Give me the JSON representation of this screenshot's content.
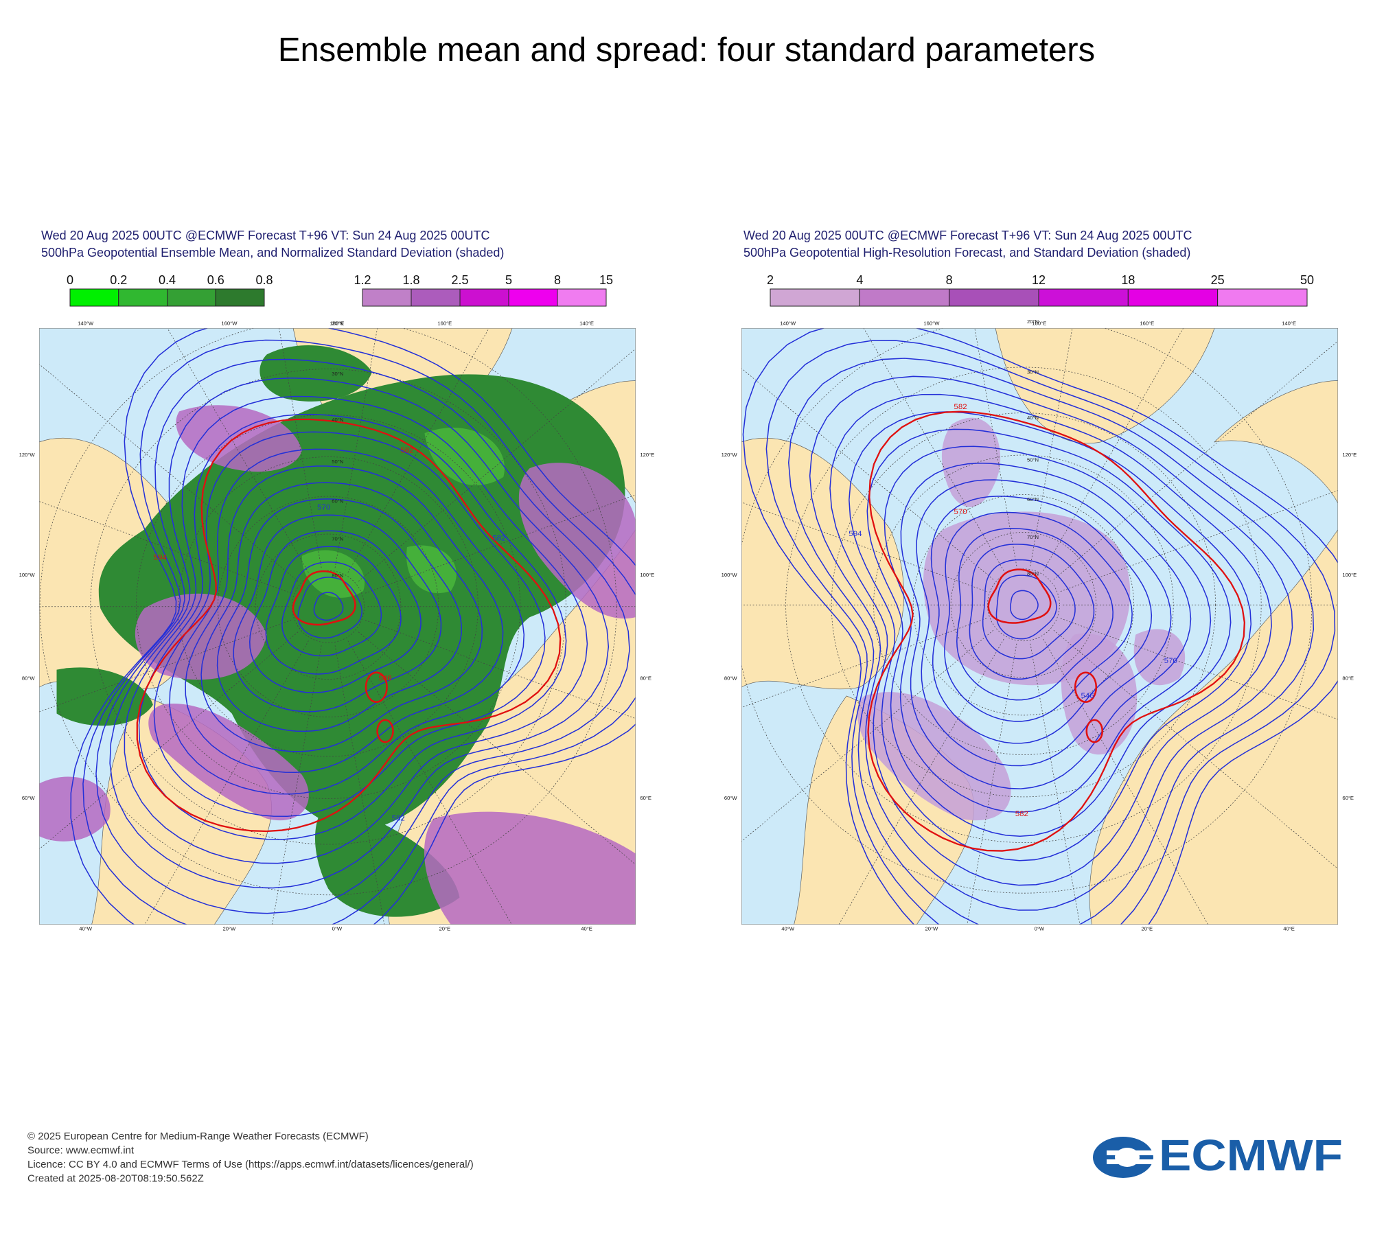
{
  "title": "Ensemble mean and spread: four standard parameters",
  "panels": [
    {
      "header": [
        "Wed 20 Aug 2025 00UTC @ECMWF Forecast T+96 VT: Sun 24 Aug 2025 00UTC",
        "500hPa Geopotential Ensemble Mean, and Normalized Standard Deviation (shaded)"
      ],
      "colorbars": [
        {
          "labels": [
            "0",
            "0.2",
            "0.4",
            "0.6",
            "0.8"
          ],
          "colors": [
            "#00f000",
            "#30b830",
            "#34a034",
            "#2d7a2d"
          ]
        },
        {
          "labels": [
            "1.2",
            "1.8",
            "2.5",
            "5",
            "8",
            "15"
          ],
          "colors": [
            "#c080c8",
            "#ac5cbc",
            "#cc10d0",
            "#ee00ee",
            "#f07cf0"
          ]
        }
      ],
      "lon_top": [
        "140°W",
        "160°W",
        "180°E",
        "160°E",
        "140°E"
      ],
      "lon_left": [
        "120°W",
        "100°W",
        "80°W",
        "60°W"
      ],
      "lon_right": [
        "120°E",
        "100°E",
        "80°E",
        "60°E"
      ],
      "lon_bottom": [
        "40°W",
        "20°W",
        "0°W",
        "20°E",
        "40°E"
      ],
      "lat_labels": [
        "20°N",
        "30°N",
        "40°N",
        "50°N",
        "60°N",
        "70°N",
        "80°N"
      ],
      "contour_labels": [
        "582",
        "570",
        "594",
        "582",
        "546",
        "582"
      ]
    },
    {
      "header": [
        "Wed 20 Aug 2025 00UTC @ECMWF Forecast T+96 VT: Sun 24 Aug 2025 00UTC",
        "500hPa Geopotential High-Resolution Forecast, and Standard Deviation (shaded)"
      ],
      "colorbars": [
        {
          "labels": [
            "2",
            "4",
            "8",
            "12",
            "18",
            "25",
            "50"
          ],
          "colors": [
            "#d0a6d4",
            "#c07ac8",
            "#a850b8",
            "#cc10d8",
            "#e400e4",
            "#f07af0"
          ]
        }
      ],
      "lon_top": [
        "140°W",
        "160°W",
        "180°E",
        "160°E",
        "140°E"
      ],
      "lon_left": [
        "120°W",
        "100°W",
        "80°W",
        "60°W"
      ],
      "lon_right": [
        "120°E",
        "100°E",
        "80°E",
        "60°E"
      ],
      "lon_bottom": [
        "40°W",
        "20°W",
        "0°W",
        "20°E",
        "40°E"
      ],
      "lat_labels": [
        "20°N",
        "30°N",
        "40°N",
        "50°N",
        "60°N",
        "70°N",
        "80°N"
      ],
      "contour_labels": [
        "582",
        "594",
        "570",
        "546",
        "582",
        "570"
      ]
    }
  ],
  "footer": [
    "© 2025 European Centre for Medium-Range Weather Forecasts (ECMWF)",
    "Source: www.ecmwf.int",
    "Licence: CC BY 4.0 and ECMWF Terms of Use (https://apps.ecmwf.int/datasets/licences/general/)",
    "Created at 2025-08-20T08:19:50.562Z"
  ],
  "logo": "ECMWF"
}
